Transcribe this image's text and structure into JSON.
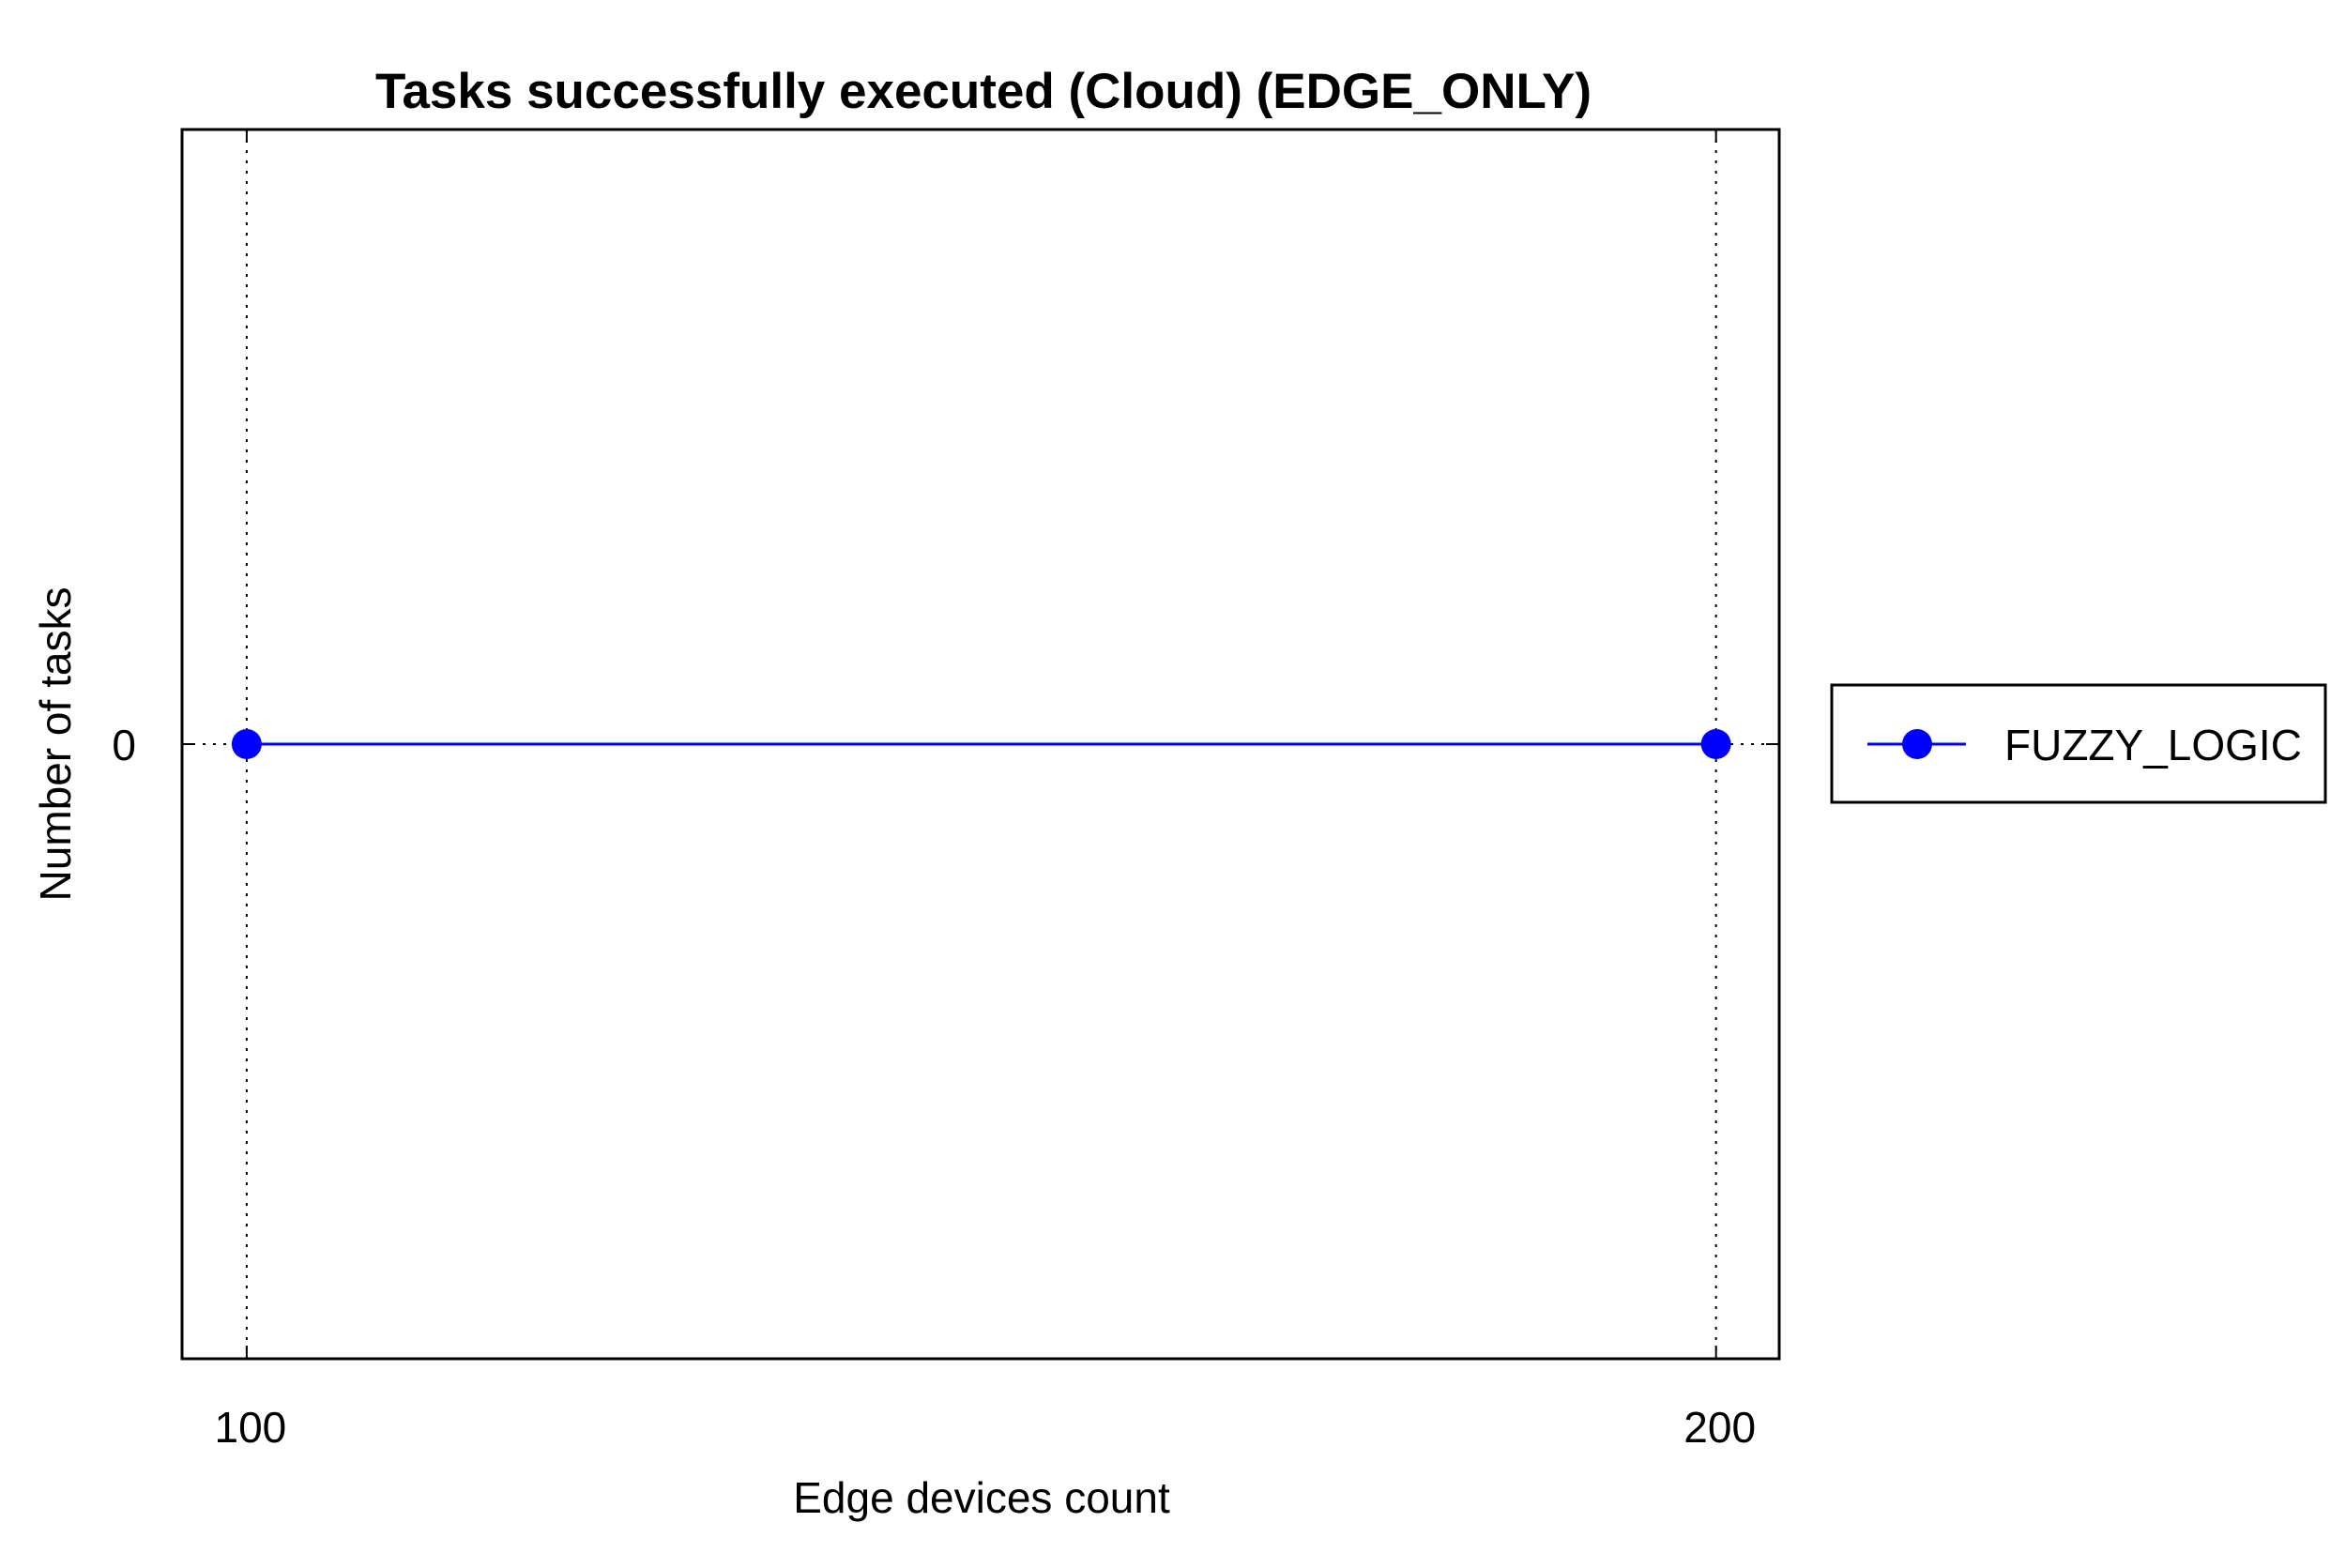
{
  "chart_data": {
    "type": "line",
    "title": "Tasks successfully executed (Cloud) (EDGE_ONLY)",
    "xlabel": "Edge devices count",
    "ylabel": "Number of tasks",
    "x": [
      100,
      200
    ],
    "xticks": [
      100,
      200
    ],
    "yticks": [
      0
    ],
    "xlim": [
      95.6,
      204.3
    ],
    "ylim": [
      -1,
      1
    ],
    "grid": "dotted",
    "legend_position": "right",
    "series": [
      {
        "name": "FUZZY_LOGIC",
        "x": [
          100,
          200
        ],
        "values": [
          0,
          0
        ],
        "color": "#0000ff",
        "marker": "circle"
      }
    ]
  }
}
